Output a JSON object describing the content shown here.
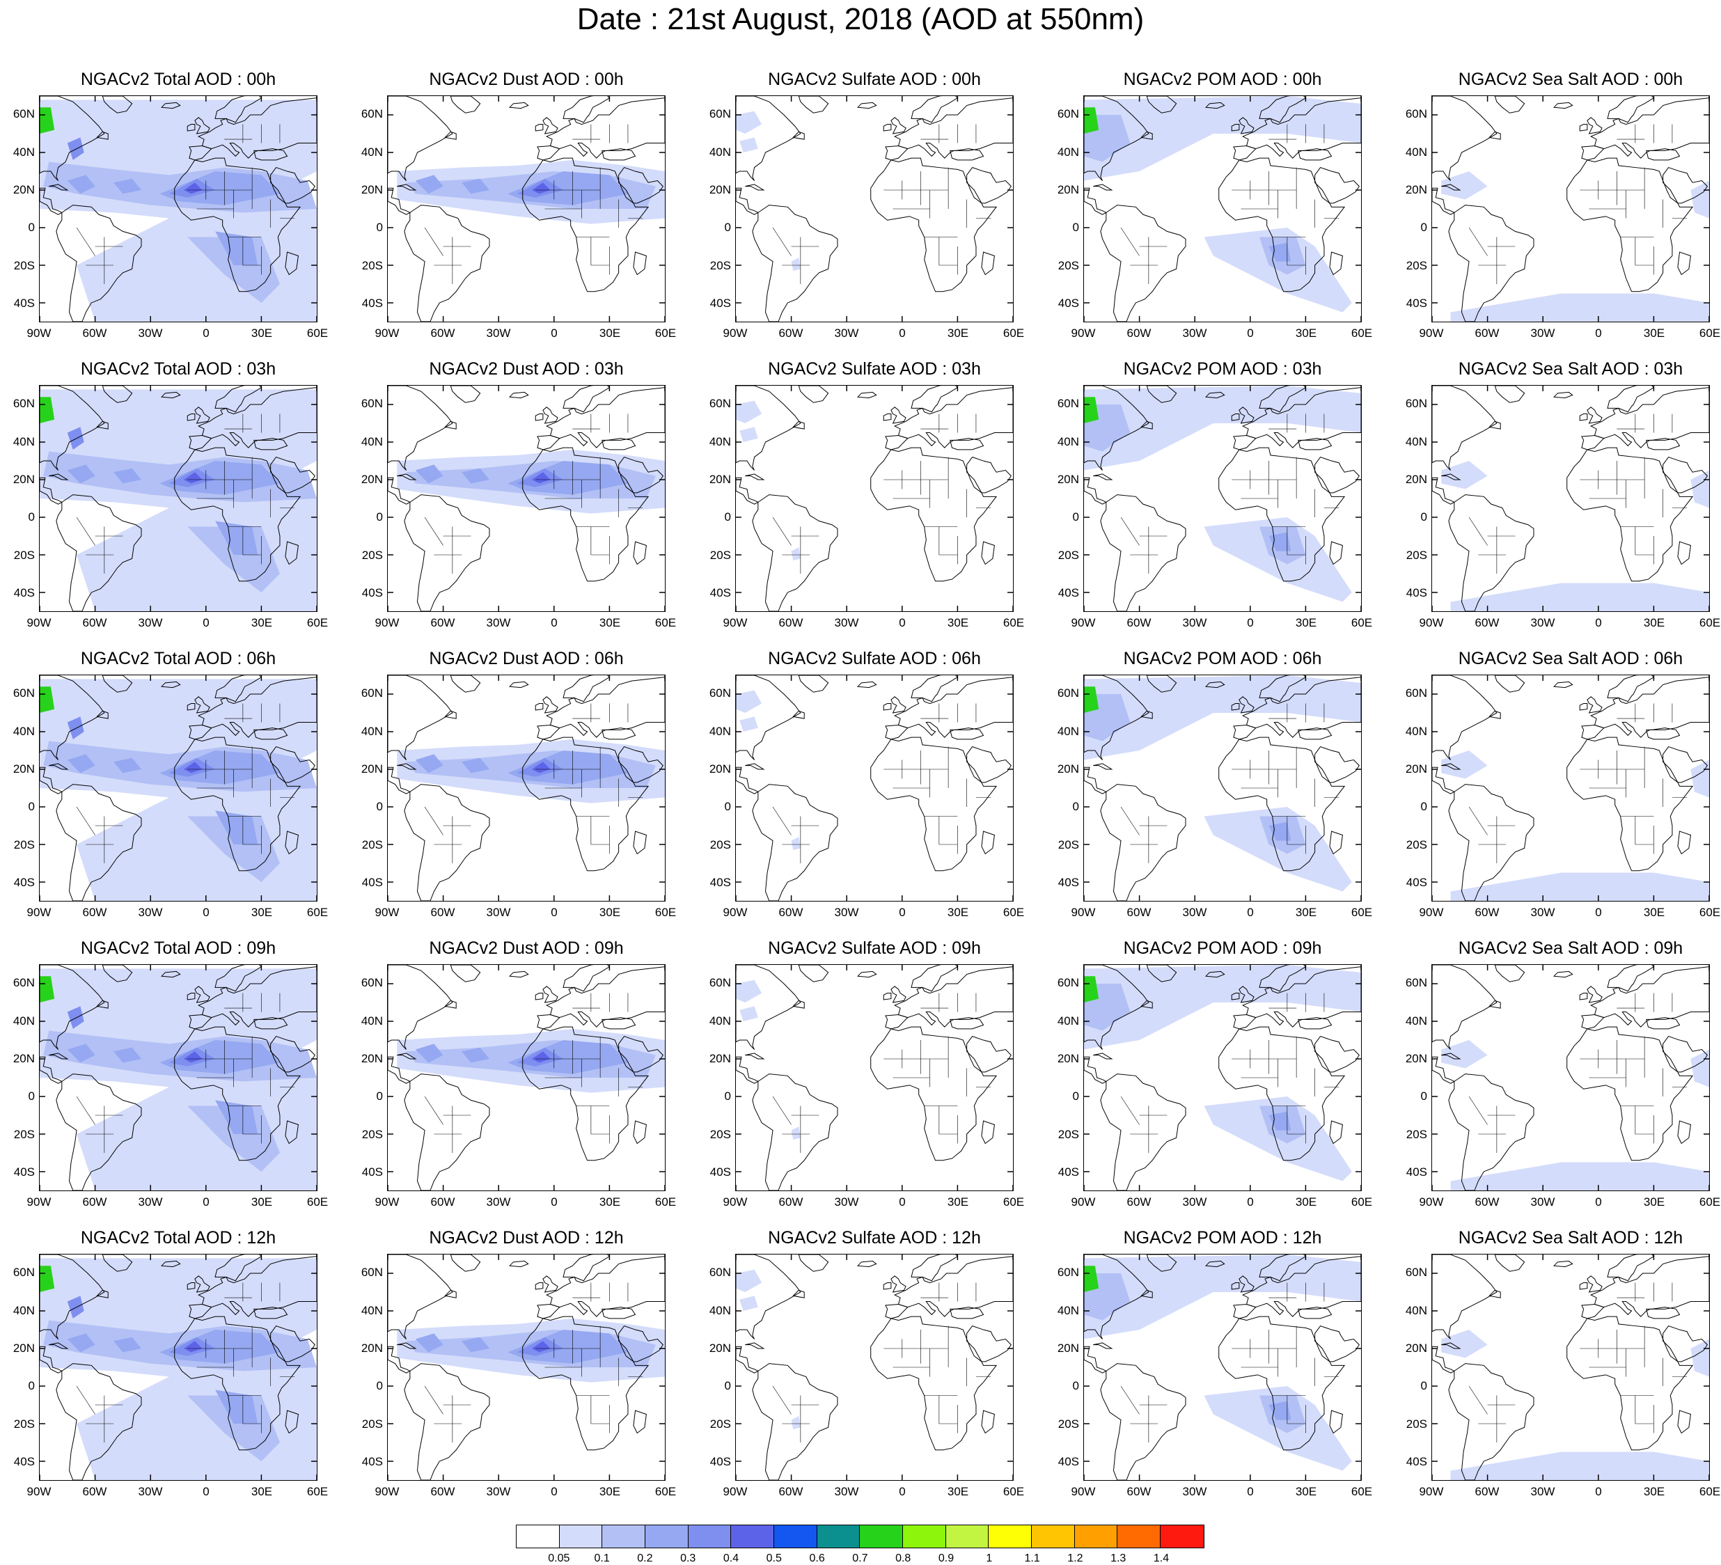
{
  "figure": {
    "title": "Date : 21st August, 2018 (AOD at 550nm)"
  },
  "axes": {
    "lon_ticks": [
      "90W",
      "60W",
      "30W",
      "0",
      "30E",
      "60E"
    ],
    "lat_ticks": [
      "60N",
      "40N",
      "20N",
      "0",
      "20S",
      "40S"
    ],
    "lon_range": [
      -90,
      60
    ],
    "lat_range": [
      -50,
      70
    ]
  },
  "panels": [
    [
      {
        "title": "NGACv2 Total AOD : 00h",
        "species": "total",
        "hour": "00h"
      },
      {
        "title": "NGACv2 Dust AOD : 00h",
        "species": "dust",
        "hour": "00h"
      },
      {
        "title": "NGACv2 Sulfate AOD : 00h",
        "species": "sulfate",
        "hour": "00h"
      },
      {
        "title": "NGACv2 POM AOD : 00h",
        "species": "pom",
        "hour": "00h"
      },
      {
        "title": "NGACv2 Sea Salt AOD : 00h",
        "species": "seasalt",
        "hour": "00h"
      }
    ],
    [
      {
        "title": "NGACv2 Total AOD : 03h",
        "species": "total",
        "hour": "03h"
      },
      {
        "title": "NGACv2 Dust AOD : 03h",
        "species": "dust",
        "hour": "03h"
      },
      {
        "title": "NGACv2 Sulfate AOD : 03h",
        "species": "sulfate",
        "hour": "03h"
      },
      {
        "title": "NGACv2 POM AOD : 03h",
        "species": "pom",
        "hour": "03h"
      },
      {
        "title": "NGACv2 Sea Salt AOD : 03h",
        "species": "seasalt",
        "hour": "03h"
      }
    ],
    [
      {
        "title": "NGACv2 Total AOD : 06h",
        "species": "total",
        "hour": "06h"
      },
      {
        "title": "NGACv2 Dust AOD : 06h",
        "species": "dust",
        "hour": "06h"
      },
      {
        "title": "NGACv2 Sulfate AOD : 06h",
        "species": "sulfate",
        "hour": "06h"
      },
      {
        "title": "NGACv2 POM AOD : 06h",
        "species": "pom",
        "hour": "06h"
      },
      {
        "title": "NGACv2 Sea Salt AOD : 06h",
        "species": "seasalt",
        "hour": "06h"
      }
    ],
    [
      {
        "title": "NGACv2 Total AOD : 09h",
        "species": "total",
        "hour": "09h"
      },
      {
        "title": "NGACv2 Dust AOD : 09h",
        "species": "dust",
        "hour": "09h"
      },
      {
        "title": "NGACv2 Sulfate AOD : 09h",
        "species": "sulfate",
        "hour": "09h"
      },
      {
        "title": "NGACv2 POM AOD : 09h",
        "species": "pom",
        "hour": "09h"
      },
      {
        "title": "NGACv2 Sea Salt  AOD : 09h",
        "species": "seasalt",
        "hour": "09h"
      }
    ],
    [
      {
        "title": "NGACv2 Total AOD  : 12h",
        "species": "total",
        "hour": "12h"
      },
      {
        "title": "NGACv2 Dust AOD : 12h",
        "species": "dust",
        "hour": "12h"
      },
      {
        "title": "NGACv2 Sulfate AOD : 12h",
        "species": "sulfate",
        "hour": "12h"
      },
      {
        "title": "NGACv2 POM  AOD : 12h",
        "species": "pom",
        "hour": "12h"
      },
      {
        "title": "NGACv2 Sea Salt  AOD : 12h",
        "species": "seasalt",
        "hour": "12h"
      }
    ]
  ],
  "colorbar": {
    "labels": [
      "0.05",
      "0.1",
      "0.2",
      "0.3",
      "0.4",
      "0.5",
      "0.6",
      "0.7",
      "0.8",
      "0.9",
      "1",
      "1.1",
      "1.2",
      "1.3",
      "1.4"
    ],
    "colors": [
      "#ffffff",
      "#d4dcfb",
      "#b2c0f5",
      "#95a8f1",
      "#7e8ff0",
      "#5d63e8",
      "#1456f0",
      "#0b8f8f",
      "#27d21a",
      "#8cf50b",
      "#c2f542",
      "#fefe04",
      "#ffc402",
      "#ffa000",
      "#ff6b00",
      "#ff1a10"
    ]
  },
  "styles": {
    "land_outline": "#000000",
    "low_aod": "#d4dcfb",
    "mid_aod": "#95a8f1",
    "high_aod": "#5d63e8",
    "dust_core": "#27d21a",
    "dust_peak": "#c2f542",
    "smoke_peak": "#ff1a10"
  }
}
